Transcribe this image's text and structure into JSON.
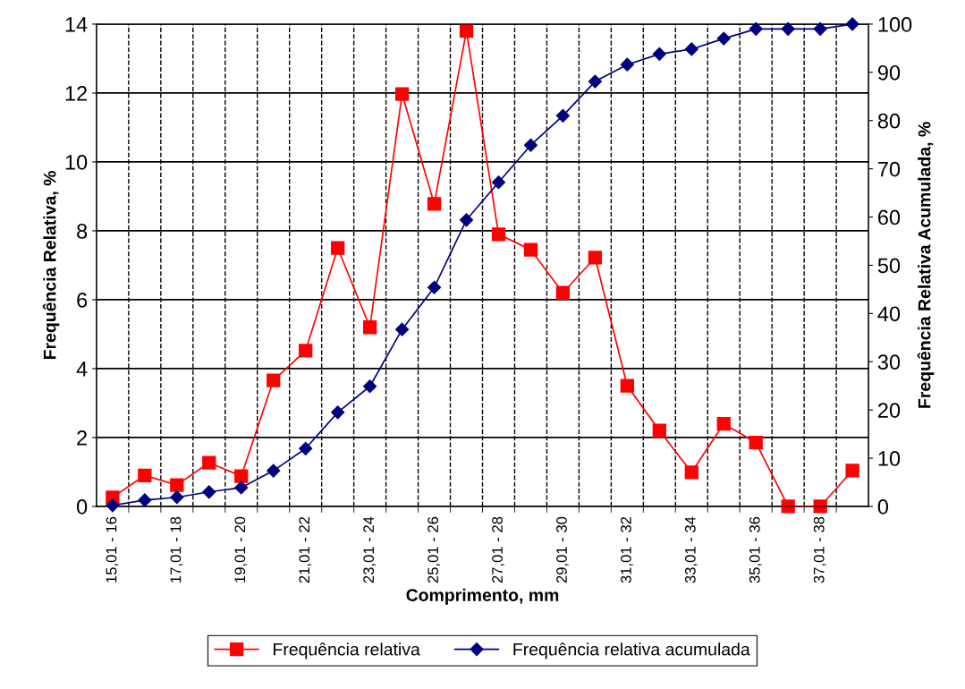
{
  "chart_data": {
    "type": "line",
    "xlabel": "Comprimento, mm",
    "ylabel": "Frequência Relativa, %",
    "y2label": "Frequência Relativa Acumulada, %",
    "categories": [
      "15,01 - 16",
      null,
      "17,01 - 18",
      null,
      "19,01 - 20",
      null,
      "21,01 - 22",
      null,
      "23,01 - 24",
      null,
      "25,01 - 26",
      null,
      "27,01 - 28",
      null,
      "29,01 - 30",
      null,
      "31,01 - 32",
      null,
      "33,01 - 34",
      null,
      "35,01 - 36",
      null,
      "37,01 - 38",
      null
    ],
    "series": [
      {
        "name": "Frequência relativa",
        "color": "#ff0000",
        "marker": "square",
        "values": [
          0.26,
          0.9,
          0.62,
          1.27,
          0.88,
          3.66,
          4.52,
          7.5,
          5.2,
          11.97,
          8.78,
          13.8,
          7.9,
          7.45,
          6.2,
          7.22,
          3.5,
          2.2,
          0.99,
          2.4,
          1.85,
          0,
          0,
          1.04
        ]
      },
      {
        "name": "Frequência relativa acumulada",
        "color": "#000080",
        "marker": "diamond",
        "axis": "y2",
        "values": [
          0.2,
          1.3,
          1.9,
          3,
          3.9,
          7.4,
          12,
          19.5,
          24.9,
          36.7,
          45.4,
          59.4,
          67.2,
          74.9,
          81,
          88.1,
          91.6,
          93.8,
          94.8,
          97,
          99,
          99,
          99,
          100
        ]
      }
    ],
    "ylim": [
      0,
      14
    ],
    "yticks": [
      0,
      2,
      4,
      6,
      8,
      10,
      12,
      14
    ],
    "y2lim": [
      0,
      100
    ],
    "y2ticks": [
      0,
      10,
      20,
      30,
      40,
      50,
      60,
      70,
      80,
      90,
      100
    ],
    "grid": true,
    "legend": "bottom",
    "line_style": "solid"
  }
}
